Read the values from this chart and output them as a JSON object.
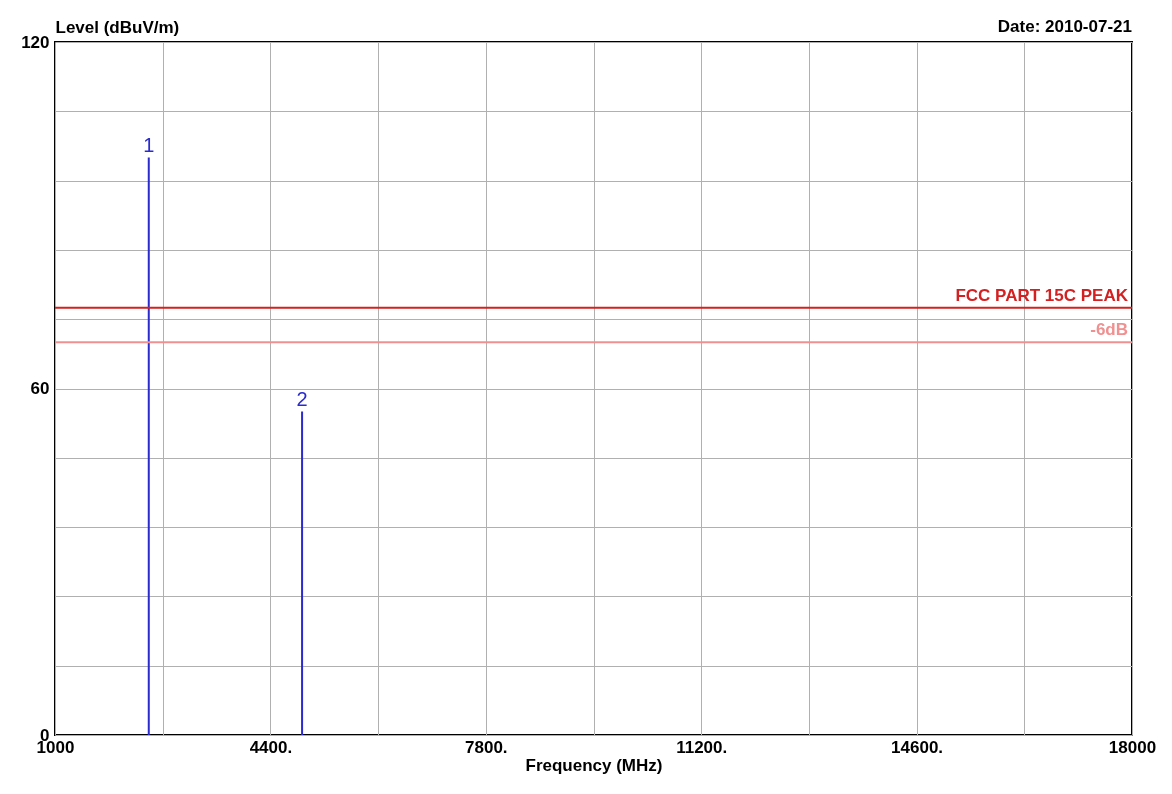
{
  "chart_data": {
    "type": "bar",
    "xlabel": "Frequency (MHz)",
    "ylabel": "Level (dBuV/m)",
    "x": [
      2480,
      4900
    ],
    "values": [
      100,
      56
    ],
    "color": "#2a2ad0",
    "xlim": [
      1000,
      18000
    ],
    "xticks": [
      1000,
      {
        "value": 2700,
        "label": null
      },
      {
        "value": 4400,
        "label": "4400."
      },
      {
        "value": 6100,
        "label": null
      },
      {
        "value": 7800,
        "label": "7800."
      },
      {
        "value": 9500,
        "label": null
      },
      {
        "value": 11200,
        "label": "11200."
      },
      {
        "value": 12900,
        "label": null
      },
      {
        "value": 14600,
        "label": "14600."
      },
      {
        "value": 16300,
        "label": null
      },
      18000
    ],
    "ylim": [
      0,
      120
    ],
    "yticks": [
      0,
      {
        "value": 12,
        "label": null
      },
      {
        "value": 24,
        "label": null
      },
      {
        "value": 36,
        "label": null
      },
      {
        "value": 48,
        "label": null
      },
      60,
      {
        "value": 72,
        "label": null
      },
      {
        "value": 84,
        "label": null
      },
      {
        "value": 96,
        "label": null
      },
      {
        "value": 108,
        "label": null
      },
      120
    ],
    "grid": true,
    "ref_lines": [
      {
        "axis": "y",
        "value": 74,
        "label": "FCC PART 15C  PEAK",
        "color": "#d42020"
      },
      {
        "axis": "y",
        "value": 68,
        "label": "-6dB",
        "color": "#f09090"
      }
    ],
    "annotations": [
      "Date: 2010-07-21",
      {
        "text": "1",
        "x": 2480,
        "y": 100
      },
      {
        "text": "2",
        "x": 4900,
        "y": 56
      }
    ]
  }
}
